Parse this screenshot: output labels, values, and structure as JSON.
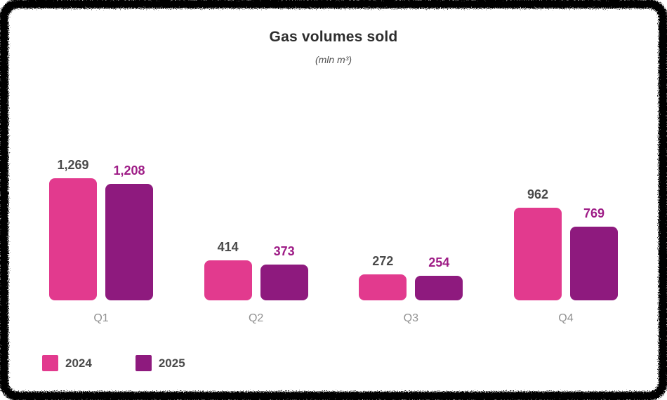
{
  "title": "Gas volumes sold",
  "subtitle": "(mln m³)",
  "colors": {
    "series_2024": "#e23a8e",
    "series_2025": "#8e1a7e",
    "value_label_2024": "#4a4a4a",
    "value_label_2025": "#9e1c86",
    "category_label": "#919191",
    "title_text": "#2d2d2d",
    "frame": "#000000",
    "background": "#ffffff"
  },
  "legend": {
    "items": [
      {
        "label": "2024",
        "color": "#e23a8e"
      },
      {
        "label": "2025",
        "color": "#8e1a7e"
      }
    ]
  },
  "chart_data": {
    "type": "bar",
    "title": "Gas volumes sold",
    "subtitle": "(mln m³)",
    "categories": [
      "Q1",
      "Q2",
      "Q3",
      "Q4"
    ],
    "series": [
      {
        "name": "2024",
        "color": "#e23a8e",
        "label_color": "#4a4a4a",
        "values": [
          1269,
          414,
          272,
          962
        ],
        "formatted": [
          "1,269",
          "414",
          "272",
          "962"
        ]
      },
      {
        "name": "2025",
        "color": "#8e1a7e",
        "label_color": "#9e1c86",
        "values": [
          1208,
          373,
          254,
          769
        ],
        "formatted": [
          "1,208",
          "373",
          "254",
          "769"
        ]
      }
    ],
    "ylim": [
      0,
      1400
    ],
    "grid": false,
    "axes_visible": false,
    "value_labels": true,
    "legend_position": "bottom-left"
  }
}
